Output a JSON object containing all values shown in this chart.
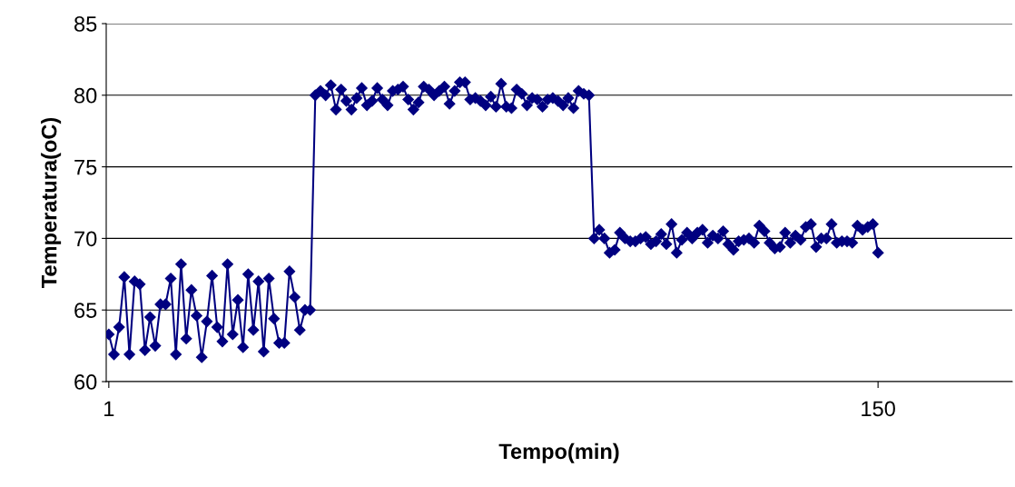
{
  "chart_data": {
    "type": "line",
    "xlabel": "Tempo(min)",
    "ylabel": "Temperatura(oC)",
    "x": [
      1,
      2,
      3,
      4,
      5,
      6,
      7,
      8,
      9,
      10,
      11,
      12,
      13,
      14,
      15,
      16,
      17,
      18,
      19,
      20,
      21,
      22,
      23,
      24,
      25,
      26,
      27,
      28,
      29,
      30,
      31,
      32,
      33,
      34,
      35,
      36,
      37,
      38,
      39,
      40,
      41,
      42,
      43,
      44,
      45,
      46,
      47,
      48,
      49,
      50,
      51,
      52,
      53,
      54,
      55,
      56,
      57,
      58,
      59,
      60,
      61,
      62,
      63,
      64,
      65,
      66,
      67,
      68,
      69,
      70,
      71,
      72,
      73,
      74,
      75,
      76,
      77,
      78,
      79,
      80,
      81,
      82,
      83,
      84,
      85,
      86,
      87,
      88,
      89,
      90,
      91,
      92,
      93,
      94,
      95,
      96,
      97,
      98,
      99,
      100,
      101,
      102,
      103,
      104,
      105,
      106,
      107,
      108,
      109,
      110,
      111,
      112,
      113,
      114,
      115,
      116,
      117,
      118,
      119,
      120,
      121,
      122,
      123,
      124,
      125,
      126,
      127,
      128,
      129,
      130,
      131,
      132,
      133,
      134,
      135,
      136,
      137,
      138,
      139,
      140,
      141,
      142,
      143,
      144,
      145,
      146,
      147,
      148,
      149,
      150
    ],
    "series": [
      {
        "color": "#000080",
        "values": [
          63.3,
          61.9,
          63.8,
          67.3,
          61.9,
          67.0,
          66.8,
          62.2,
          64.5,
          62.5,
          65.4,
          65.4,
          67.2,
          61.9,
          68.2,
          63.0,
          66.4,
          64.6,
          61.7,
          64.2,
          67.4,
          63.8,
          62.8,
          68.2,
          63.3,
          65.7,
          62.4,
          67.5,
          63.6,
          67.0,
          62.1,
          67.2,
          64.4,
          62.7,
          62.7,
          67.7,
          65.9,
          63.6,
          65.0,
          65.0,
          80.0,
          80.3,
          80.0,
          80.7,
          79.0,
          80.4,
          79.6,
          79.0,
          79.8,
          80.5,
          79.3,
          79.6,
          80.5,
          79.7,
          79.3,
          80.3,
          80.4,
          80.6,
          79.7,
          79.0,
          79.5,
          80.6,
          80.4,
          80.0,
          80.3,
          80.6,
          79.4,
          80.3,
          80.9,
          80.9,
          79.7,
          79.8,
          79.6,
          79.3,
          79.9,
          79.2,
          80.8,
          79.2,
          79.1,
          80.4,
          80.1,
          79.3,
          79.8,
          79.7,
          79.2,
          79.7,
          79.8,
          79.6,
          79.3,
          79.8,
          79.1,
          80.3,
          80.1,
          80.0,
          70.0,
          70.6,
          70.0,
          69.0,
          69.2,
          70.4,
          70.0,
          69.8,
          69.8,
          70.0,
          70.1,
          69.6,
          69.8,
          70.3,
          69.6,
          71.0,
          69.0,
          69.9,
          70.4,
          70.0,
          70.4,
          70.6,
          69.7,
          70.2,
          70.0,
          70.5,
          69.6,
          69.2,
          69.8,
          69.9,
          70.0,
          69.7,
          70.9,
          70.5,
          69.7,
          69.3,
          69.4,
          70.4,
          69.7,
          70.2,
          69.9,
          70.8,
          71.0,
          69.4,
          70.0,
          70.0,
          71.0,
          69.7,
          69.8,
          69.8,
          69.7,
          70.9,
          70.6,
          70.8,
          71.0,
          69.0
        ]
      }
    ],
    "xlim": [
      0.5,
      176
    ],
    "xticks": [
      1,
      150
    ],
    "ylim": [
      60,
      85
    ],
    "yticks": [
      60,
      65,
      70,
      75,
      80,
      85
    ],
    "grid": "y",
    "marker": "diamond",
    "line_style": "solid",
    "legend": false
  }
}
